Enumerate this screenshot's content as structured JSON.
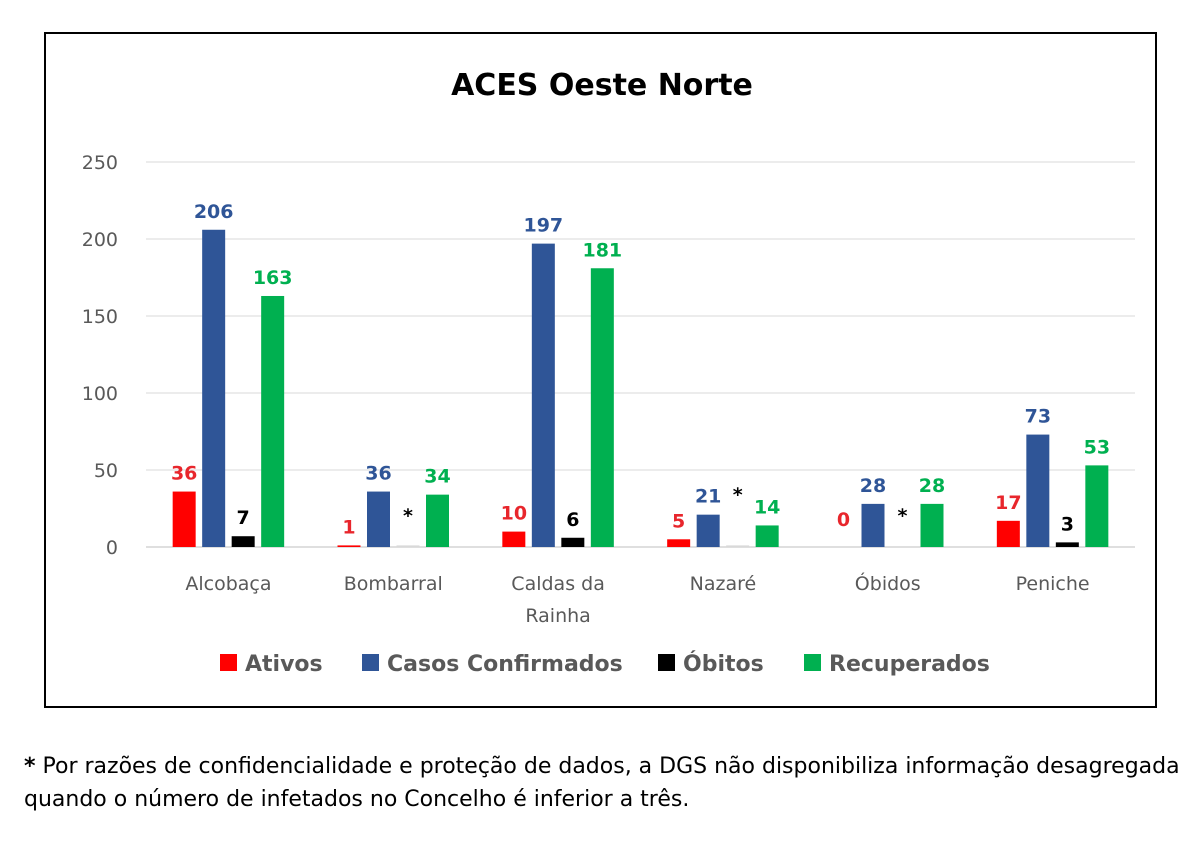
{
  "chart_data": {
    "type": "bar",
    "title": "ACES Oeste Norte",
    "categories": [
      "Alcobaça",
      "Bombarral",
      "Caldas da Rainha",
      "Nazaré",
      "Óbidos",
      "Peniche"
    ],
    "category_lines": [
      [
        "Alcobaça"
      ],
      [
        "Bombarral"
      ],
      [
        "Caldas da",
        "Rainha"
      ],
      [
        "Nazaré"
      ],
      [
        "Óbidos"
      ],
      [
        "Peniche"
      ]
    ],
    "series": [
      {
        "name": "Ativos",
        "color": "#ff0000",
        "label_color": "#e8262c",
        "values": [
          36,
          1,
          10,
          5,
          0,
          17
        ],
        "labels": [
          "36",
          "1",
          "10",
          "5",
          "0",
          "17"
        ]
      },
      {
        "name": "Casos Confirmados",
        "color": "#2f5597",
        "label_color": "#2f5597",
        "values": [
          206,
          36,
          197,
          21,
          28,
          73
        ],
        "labels": [
          "206",
          "36",
          "197",
          "21",
          "28",
          "73"
        ]
      },
      {
        "name": "Óbitos",
        "color": "#000000",
        "label_color": "#000000",
        "values": [
          7,
          1,
          6,
          1,
          0,
          3
        ],
        "labels": [
          "7",
          "*",
          "6",
          "*",
          "*",
          "3"
        ]
      },
      {
        "name": "Recuperados",
        "color": "#00b050",
        "label_color": "#00b050",
        "values": [
          163,
          34,
          181,
          14,
          28,
          53
        ],
        "labels": [
          "163",
          "34",
          "181",
          "14",
          "28",
          "53"
        ]
      }
    ],
    "ylim": [
      0,
      250
    ],
    "yticks": [
      "0",
      "50",
      "100",
      "150",
      "200",
      "250"
    ],
    "grid": true,
    "legend_position": "bottom"
  },
  "footnote": {
    "star": "*",
    "text": " Por razões de confidencialidade e proteção de dados, a DGS não disponibiliza informação desagregada quando o número de infetados no Concelho é inferior a três."
  }
}
